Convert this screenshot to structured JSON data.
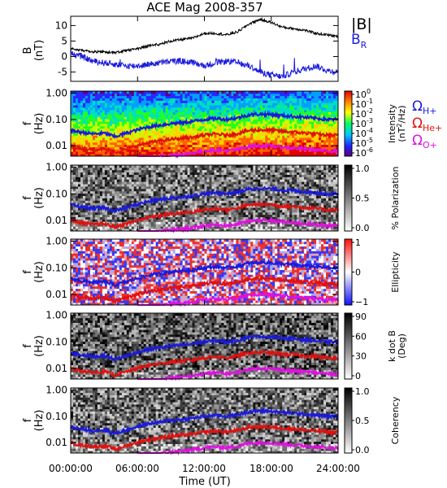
{
  "title": "ACE Mag 2008-357",
  "time_ticks": [
    "00:00:00",
    "06:00:00",
    "12:00:00",
    "18:00:00",
    "24:00:00"
  ],
  "xlabel": "Time (UT)",
  "panel0": {
    "ylabel_top": "B",
    "ylabel_bottom": "(nT)",
    "yticks": [
      "10",
      "5",
      "0",
      "-5"
    ],
    "legend": [
      {
        "text": "|B|",
        "color": "#000000"
      },
      {
        "text": "B",
        "sub": "R",
        "color": "#1a1adc"
      }
    ]
  },
  "freq_yticks": [
    "1.00",
    "0.10",
    "0.01"
  ],
  "freq_ylabel_top": "f",
  "freq_ylabel_bottom": "(Hz)",
  "gyro_legend": [
    {
      "main": "Ω",
      "sub": "H+",
      "color": "#1a1adc"
    },
    {
      "main": "Ω",
      "sub": "He+",
      "color": "#e01010"
    },
    {
      "main": "Ω",
      "sub": "O+",
      "color": "#e010e0"
    }
  ],
  "colorbars": [
    {
      "label": "Intensity",
      "unit_pre": "(nT",
      "unit_sup": "2",
      "unit_post": "/Hz)",
      "ticks": [
        {
          "b": "10",
          "e": "0"
        },
        {
          "b": "10",
          "e": "-1"
        },
        {
          "b": "10",
          "e": "-2"
        },
        {
          "b": "10",
          "e": "-3"
        },
        {
          "b": "10",
          "e": "-4"
        },
        {
          "b": "10",
          "e": "-5"
        },
        {
          "b": "10",
          "e": "-6"
        }
      ]
    },
    {
      "label": "% Polarization",
      "ticks": [
        "1.0",
        "0.5",
        "0.0"
      ]
    },
    {
      "label": "Ellipticity",
      "ticks": [
        "1",
        "0",
        "−1"
      ]
    },
    {
      "label": "k dot B",
      "unit": "(Deg)",
      "ticks": [
        "90",
        "60",
        "30",
        "0"
      ]
    },
    {
      "label": "Coherency",
      "ticks": [
        "1.0",
        "0.5",
        "0.0"
      ]
    }
  ],
  "chart_data": [
    {
      "type": "line",
      "title": "ACE Mag 2008-357",
      "ylabel": "B (nT)",
      "ylim": [
        -8,
        13
      ],
      "x_unit": "hours UT",
      "x": [
        0,
        1,
        2,
        3,
        4,
        5,
        6,
        7,
        8,
        9,
        10,
        11,
        12,
        13,
        14,
        15,
        16,
        17,
        18,
        19,
        20,
        21,
        22,
        23,
        24
      ],
      "series": [
        {
          "name": "|B|",
          "color": "#000000",
          "values": [
            2.5,
            2.0,
            1.5,
            1.5,
            1.2,
            2.0,
            2.5,
            3.5,
            4.0,
            5.0,
            5.5,
            6.0,
            7.5,
            7.5,
            7.0,
            8.0,
            10.5,
            12.0,
            11.0,
            9.5,
            9.0,
            8.5,
            7.5,
            7.0,
            6.5
          ]
        },
        {
          "name": "B",
          "name_sub": "R",
          "color": "#1a1adc",
          "values": [
            1.0,
            0.0,
            -1.5,
            -2.0,
            -2.5,
            -3.0,
            -3.0,
            -2.5,
            -2.0,
            -1.5,
            -1.5,
            -2.0,
            -3.0,
            -2.0,
            -1.5,
            -2.0,
            -3.0,
            -5.0,
            -6.0,
            -6.5,
            -5.0,
            -4.0,
            -3.0,
            -4.5,
            -5.0
          ]
        }
      ]
    },
    {
      "type": "heatmap",
      "quantity": "Intensity",
      "unit": "nT^2/Hz",
      "ylabel": "f (Hz)",
      "yscale": "log",
      "ylim": [
        0.004,
        1.2
      ],
      "colorbar_range": [
        1e-06,
        1
      ],
      "x_unit": "hours UT",
      "x": [
        0,
        1,
        2,
        3,
        4,
        5,
        6,
        7,
        8,
        9,
        10,
        11,
        12,
        13,
        14,
        15,
        16,
        17,
        18,
        19,
        20,
        21,
        22,
        23,
        24
      ],
      "gyrofrequency_lines": [
        {
          "name": "Ω",
          "name_sub": "H+",
          "color": "#1a1adc",
          "values": [
            0.038,
            0.032,
            0.028,
            0.03,
            0.022,
            0.03,
            0.04,
            0.052,
            0.06,
            0.07,
            0.075,
            0.085,
            0.1,
            0.11,
            0.1,
            0.115,
            0.15,
            0.16,
            0.155,
            0.14,
            0.13,
            0.12,
            0.11,
            0.1,
            0.1
          ]
        },
        {
          "name": "Ω",
          "name_sub": "He+",
          "color": "#e01010",
          "values": [
            0.0095,
            0.008,
            0.007,
            0.0075,
            0.0055,
            0.0075,
            0.01,
            0.013,
            0.015,
            0.0175,
            0.019,
            0.021,
            0.025,
            0.028,
            0.025,
            0.029,
            0.038,
            0.04,
            0.039,
            0.035,
            0.033,
            0.03,
            0.028,
            0.025,
            0.025
          ]
        },
        {
          "name": "Ω",
          "name_sub": "O+",
          "color": "#e010e0",
          "values": [
            null,
            null,
            null,
            null,
            null,
            null,
            0.0025,
            0.0033,
            0.0038,
            0.0044,
            0.0047,
            0.0053,
            0.0063,
            0.0069,
            0.0063,
            0.0072,
            0.0094,
            0.01,
            0.0097,
            0.0088,
            0.0081,
            0.0075,
            0.0069,
            0.0063,
            0.0063
          ]
        }
      ]
    },
    {
      "type": "heatmap",
      "quantity": "% Polarization",
      "ylabel": "f (Hz)",
      "yscale": "log",
      "colorbar_range": [
        0.0,
        1.0
      ]
    },
    {
      "type": "heatmap",
      "quantity": "Ellipticity",
      "ylabel": "f (Hz)",
      "yscale": "log",
      "colorbar_range": [
        -1,
        1
      ]
    },
    {
      "type": "heatmap",
      "quantity": "k dot B",
      "unit": "Deg",
      "ylabel": "f (Hz)",
      "yscale": "log",
      "colorbar_range": [
        0,
        90
      ]
    },
    {
      "type": "heatmap",
      "quantity": "Coherency",
      "ylabel": "f (Hz)",
      "yscale": "log",
      "colorbar_range": [
        0.0,
        1.0
      ]
    }
  ]
}
